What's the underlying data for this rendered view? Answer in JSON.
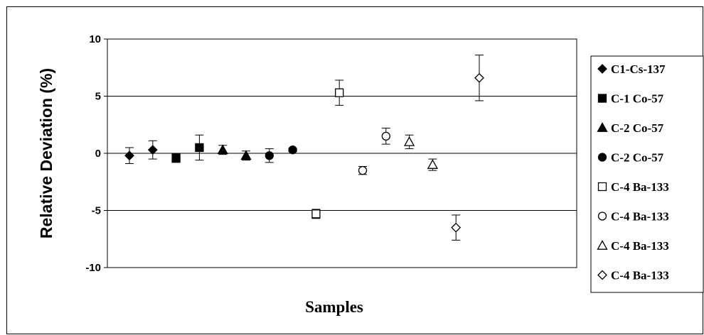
{
  "chart_data": {
    "type": "scatter",
    "title": "",
    "xlabel": "Samples",
    "ylabel": "Relative Deviation (%)",
    "ylim": [
      -10,
      10
    ],
    "yticks": [
      10,
      5,
      0,
      -5,
      -10
    ],
    "ytick_labels": [
      "10",
      "5",
      "0",
      "-5",
      "-10"
    ],
    "grid": true,
    "legend_position": "right",
    "series": [
      {
        "name": "C1-Cs-137",
        "marker": "diamond-filled",
        "points": [
          {
            "x": 1,
            "y": -0.2,
            "err": 0.7
          },
          {
            "x": 2,
            "y": 0.3,
            "err": 0.8
          }
        ]
      },
      {
        "name": "C-1 Co-57",
        "marker": "square-filled",
        "points": [
          {
            "x": 3,
            "y": -0.4,
            "err": 0.4
          },
          {
            "x": 4,
            "y": 0.5,
            "err": 1.1
          }
        ]
      },
      {
        "name": "C-2 Co-57",
        "marker": "triangle-filled",
        "points": [
          {
            "x": 5,
            "y": 0.3,
            "err": 0.4
          },
          {
            "x": 6,
            "y": -0.2,
            "err": 0.4
          }
        ]
      },
      {
        "name": "C-2 Co-57",
        "marker": "circle-filled",
        "points": [
          {
            "x": 7,
            "y": -0.2,
            "err": 0.6
          },
          {
            "x": 8,
            "y": 0.3,
            "err": 0.15
          }
        ]
      },
      {
        "name": "C-4 Ba-133",
        "marker": "square-open",
        "points": [
          {
            "x": 9,
            "y": -5.3,
            "err": 0.4
          },
          {
            "x": 10,
            "y": 5.3,
            "err": 1.1
          }
        ]
      },
      {
        "name": "C-4 Ba-133",
        "marker": "circle-open",
        "points": [
          {
            "x": 11,
            "y": -1.5,
            "err": 0.35
          },
          {
            "x": 12,
            "y": 1.5,
            "err": 0.7
          }
        ]
      },
      {
        "name": "C-4 Ba-133",
        "marker": "triangle-open",
        "points": [
          {
            "x": 13,
            "y": 1.0,
            "err": 0.6
          },
          {
            "x": 14,
            "y": -1.0,
            "err": 0.5
          }
        ]
      },
      {
        "name": "C-4 Ba-133",
        "marker": "diamond-open",
        "points": [
          {
            "x": 15,
            "y": -6.5,
            "err": 1.1
          },
          {
            "x": 16,
            "y": 6.6,
            "err": 2.0
          }
        ]
      }
    ]
  }
}
